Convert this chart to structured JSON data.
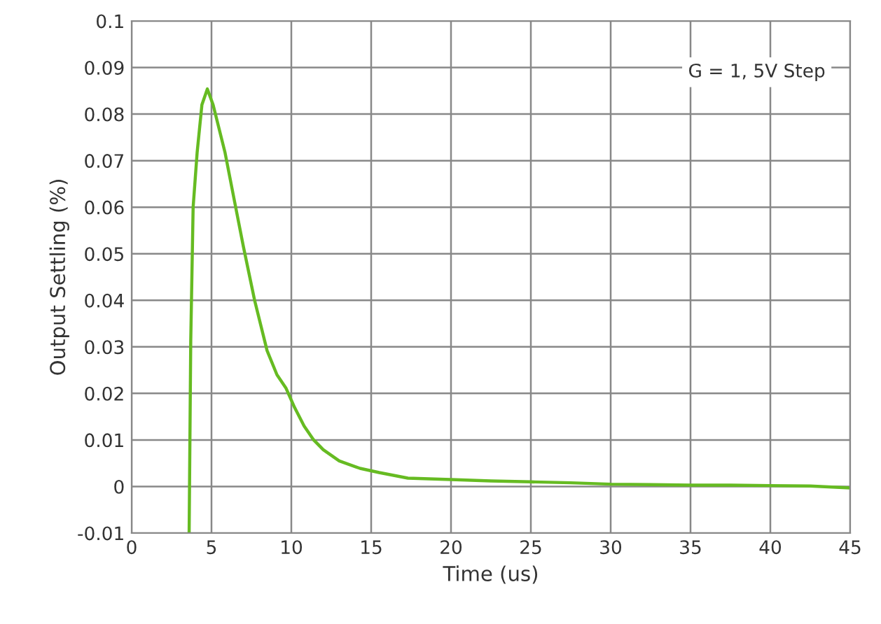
{
  "chart_data": {
    "type": "line",
    "xlabel": "Time (us)",
    "ylabel": "Output Settling (%)",
    "annotations": [
      "G = 1, 5V Step"
    ],
    "xlim": [
      0,
      45
    ],
    "xticks": [
      0,
      5,
      10,
      15,
      20,
      25,
      30,
      35,
      40,
      45
    ],
    "ylim": [
      -0.01,
      0.1
    ],
    "yticks": [
      -0.01,
      0,
      0.01,
      0.02,
      0.03,
      0.04,
      0.05,
      0.06,
      0.07,
      0.08,
      0.09,
      0.1
    ],
    "grid": true,
    "series": [
      {
        "color": "#66bb22",
        "x": [
          3.6,
          3.7,
          3.85,
          4.1,
          4.4,
          4.74,
          5.1,
          5.85,
          6.4,
          7.0,
          7.7,
          8.48,
          9.1,
          9.67,
          10.2,
          10.8,
          11.4,
          12.0,
          13.0,
          14.3,
          15.5,
          17.3,
          20,
          22.5,
          25,
          27.5,
          30,
          32.5,
          35,
          37.5,
          40,
          42.5,
          45
        ],
        "values": [
          -0.01,
          0.0312,
          0.06,
          0.0717,
          0.082,
          0.0854,
          0.082,
          0.0717,
          0.062,
          0.0515,
          0.04,
          0.0292,
          0.024,
          0.0211,
          0.017,
          0.013,
          0.01,
          0.0079,
          0.0055,
          0.0039,
          0.003,
          0.0018,
          0.0015,
          0.0012,
          0.001,
          0.0008,
          0.0005,
          0.0004,
          0.0003,
          0.0003,
          0.0002,
          0.0001,
          -0.0003
        ]
      }
    ]
  }
}
